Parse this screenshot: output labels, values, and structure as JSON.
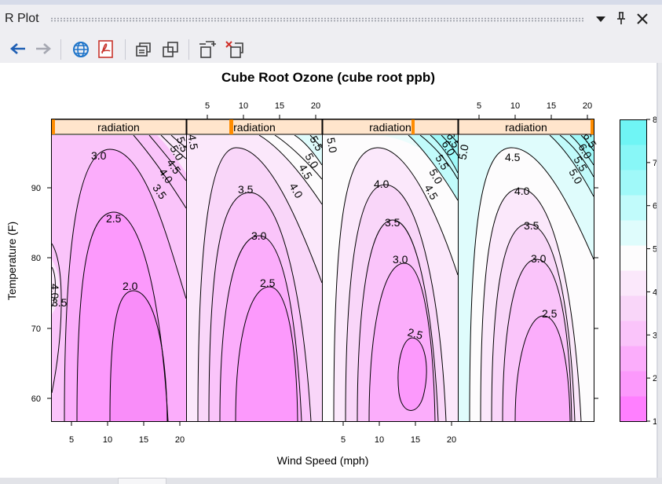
{
  "window": {
    "title": "R Plot"
  },
  "chart_data": {
    "type": "contour",
    "title": "Cube Root Ozone (cube root ppb)",
    "xlabel": "Wind Speed (mph)",
    "ylabel": "Temperature (F)",
    "strip_label": "radiation",
    "panels": 4,
    "x_ticks": [
      5,
      10,
      15,
      20
    ],
    "y_ticks": [
      60,
      70,
      80,
      90
    ],
    "colorkey_ticks": [
      1,
      2,
      3,
      4,
      5,
      6,
      7,
      8
    ],
    "colorkey_colors": [
      "#ff7fff",
      "#fc99fc",
      "#fbadfb",
      "#fac4fa",
      "#f9d6f9",
      "#fbe8fb",
      "#fdfcfd",
      "#dffcfc",
      "#c1fbfb",
      "#a0f9f9",
      "#88f7f7",
      "#6ff5f5"
    ],
    "contour_labels": [
      [
        "3.0",
        "2.5",
        "2.0",
        "4.0",
        "3.5",
        "5.5",
        "5.0",
        "4.5",
        "4.0",
        "3.5"
      ],
      [
        "3.5",
        "3.0",
        "2.5",
        "5.5",
        "5.0",
        "4.5",
        "4.0",
        "4.5"
      ],
      [
        "4.0",
        "3.5",
        "3.0",
        "2.5",
        "5.0",
        "6.5",
        "6.0",
        "5.5",
        "5.0",
        "4.5"
      ],
      [
        "4.5",
        "4.0",
        "3.5",
        "3.0",
        "2.5",
        "5.0",
        "6.5",
        "6.0",
        "5.5",
        "5.0"
      ]
    ]
  }
}
